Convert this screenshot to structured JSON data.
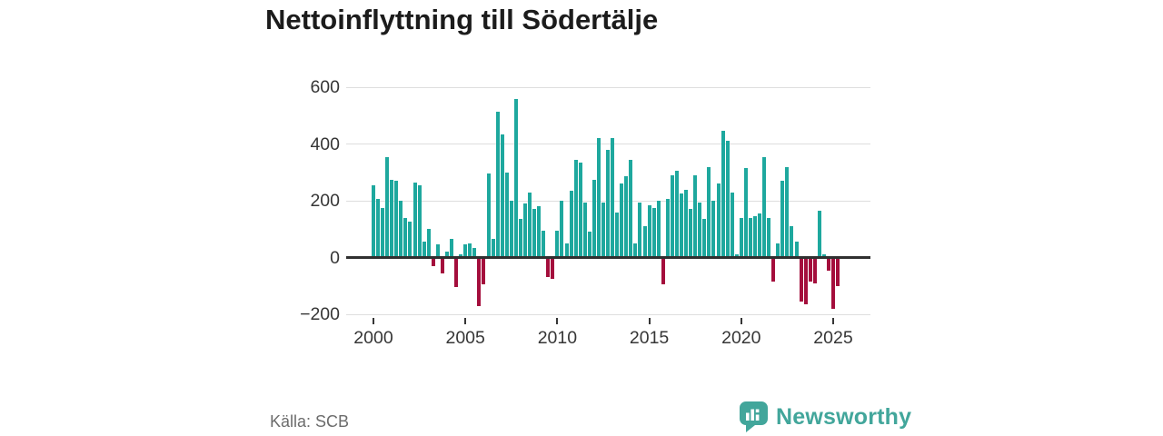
{
  "chart": {
    "title": "Nettoinflyttning till Södertälje",
    "source": "Källa: SCB"
  },
  "branding": {
    "name": "Newsworthy",
    "icon": "newsworthy-speech-bubble-bar-chart-icon",
    "color": "#42a69b"
  },
  "chart_data": {
    "type": "bar",
    "title": "Nettoinflyttning till Södertälje",
    "xlabel": "",
    "ylabel": "",
    "x_start": "2000-Q1",
    "x_freq": "quarterly",
    "values": [
      255,
      205,
      175,
      355,
      275,
      270,
      200,
      140,
      125,
      265,
      255,
      55,
      100,
      -30,
      45,
      -55,
      20,
      65,
      -105,
      10,
      45,
      50,
      35,
      -170,
      -95,
      295,
      65,
      515,
      435,
      300,
      200,
      560,
      135,
      190,
      230,
      170,
      180,
      95,
      -70,
      -75,
      95,
      200,
      50,
      235,
      345,
      335,
      195,
      90,
      275,
      420,
      195,
      380,
      420,
      160,
      260,
      285,
      345,
      50,
      195,
      110,
      185,
      175,
      200,
      -95,
      205,
      290,
      305,
      225,
      240,
      170,
      290,
      195,
      135,
      320,
      200,
      260,
      445,
      410,
      230,
      10,
      140,
      315,
      140,
      145,
      155,
      355,
      140,
      -85,
      50,
      270,
      320,
      110,
      55,
      -155,
      -165,
      -85,
      -90,
      165,
      10,
      -45,
      -180,
      -100
    ],
    "yticks": [
      600,
      400,
      200,
      0,
      -200
    ],
    "ytick_labels": [
      "600",
      "400",
      "200",
      "0",
      "−200"
    ],
    "xticks": [
      2000,
      2005,
      2010,
      2015,
      2020,
      2025
    ],
    "ylim": [
      -200,
      600
    ],
    "grid": true,
    "legend": false,
    "positive_color": "#1ea89e",
    "negative_color": "#a40e3c"
  }
}
